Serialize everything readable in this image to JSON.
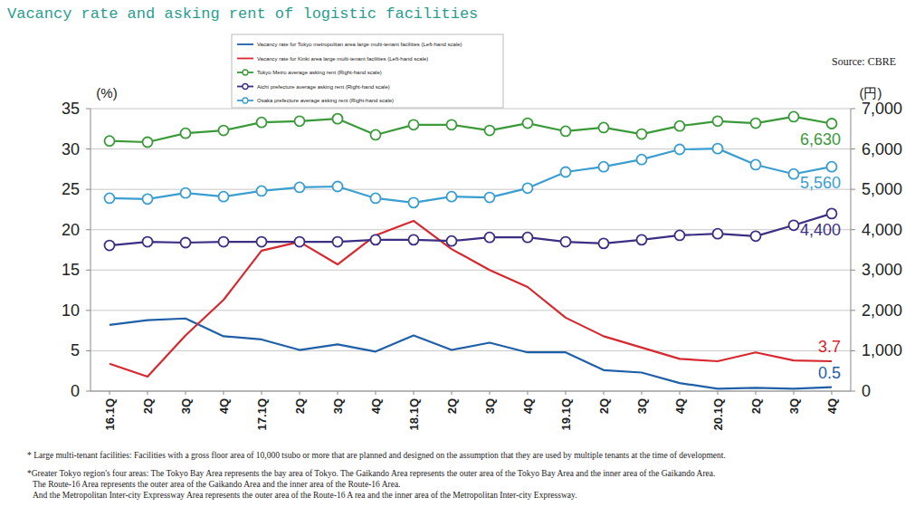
{
  "chart_data": {
    "type": "line",
    "title": "Vacancy rate and asking rent of logistic facilities",
    "source": "Source: CBRE",
    "y_label": "(%)",
    "y2_label": "(円)",
    "categories": [
      "16.1Q",
      "2Q",
      "3Q",
      "4Q",
      "17.1Q",
      "2Q",
      "3Q",
      "4Q",
      "18.1Q",
      "2Q",
      "3Q",
      "4Q",
      "19.1Q",
      "2Q",
      "3Q",
      "4Q",
      "20.1Q",
      "2Q",
      "3Q",
      "4Q"
    ],
    "ylim": [
      0,
      35
    ],
    "yticks": [
      0,
      5,
      10,
      15,
      20,
      25,
      30,
      35
    ],
    "y2lim": [
      0,
      7000
    ],
    "y2ticks": [
      0,
      {
        "value": 1000,
        "label": "1,000"
      },
      {
        "value": 2000,
        "label": "2,000"
      },
      {
        "value": 3000,
        "label": "3,000"
      },
      {
        "value": 4000,
        "label": "4,000"
      },
      {
        "value": 5000,
        "label": "5,000"
      },
      {
        "value": 6000,
        "label": "6,000"
      },
      {
        "value": 7000,
        "label": "7,000"
      }
    ],
    "grid": true,
    "legend": "top",
    "series": [
      {
        "name": "Vacancy rate for Tokyo metropolitan area large multi-tenant facilities (Left-hand scale)",
        "color": "#1f5fa8",
        "axis": "y",
        "marker": "none",
        "values": [
          8.2,
          8.8,
          9.0,
          6.8,
          6.4,
          5.1,
          5.8,
          4.9,
          6.9,
          5.1,
          6.0,
          4.8,
          4.8,
          2.6,
          2.3,
          1.0,
          0.3,
          0.4,
          0.3,
          0.5
        ],
        "value_labels": [
          null,
          null,
          null,
          null,
          null,
          null,
          null,
          null,
          null,
          null,
          null,
          null,
          null,
          null,
          null,
          null,
          null,
          null,
          null,
          "0.5"
        ]
      },
      {
        "name": "Vacancy rate for Kinki area large multi-tenant facilities (Left-hand scale)",
        "color": "#d7282f",
        "axis": "y",
        "marker": "none",
        "values": [
          3.4,
          1.8,
          6.9,
          11.3,
          17.4,
          18.5,
          15.7,
          19.3,
          21.1,
          17.6,
          15.0,
          12.9,
          9.1,
          6.8,
          5.4,
          4.0,
          3.7,
          4.8,
          3.8,
          3.7
        ],
        "value_labels": [
          null,
          null,
          null,
          null,
          null,
          null,
          null,
          null,
          null,
          null,
          null,
          null,
          null,
          null,
          null,
          null,
          null,
          null,
          null,
          "3.7"
        ]
      },
      {
        "name": "Tokyo Metro average asking rent (Right-hand scale)",
        "color": "#3a9a3a",
        "axis": "y2",
        "marker": "circle",
        "values": [
          6200,
          6170,
          6390,
          6460,
          6660,
          6690,
          6750,
          6350,
          6600,
          6600,
          6460,
          6640,
          6440,
          6530,
          6370,
          6570,
          6690,
          6640,
          6800,
          6630
        ],
        "value_labels": [
          null,
          null,
          null,
          null,
          null,
          null,
          null,
          null,
          null,
          null,
          null,
          null,
          null,
          null,
          null,
          null,
          null,
          null,
          null,
          "6,630"
        ]
      },
      {
        "name": "Aichi prefecture average asking rent (Right-hand scale)",
        "color": "#3b2f84",
        "axis": "y2",
        "marker": "circle",
        "values": [
          3610,
          3700,
          3680,
          3700,
          3700,
          3700,
          3700,
          3750,
          3750,
          3720,
          3810,
          3810,
          3700,
          3660,
          3750,
          3860,
          3900,
          3840,
          4110,
          4400
        ],
        "value_labels": [
          null,
          null,
          null,
          null,
          null,
          null,
          null,
          null,
          null,
          null,
          null,
          null,
          null,
          null,
          null,
          null,
          null,
          null,
          null,
          "4,400"
        ]
      },
      {
        "name": "Osaka prefecture average asking rent (Right-hand scale)",
        "color": "#3a9ed0",
        "axis": "y2",
        "marker": "circle",
        "values": [
          4780,
          4760,
          4910,
          4820,
          4960,
          5050,
          5070,
          4780,
          4670,
          4820,
          4800,
          5030,
          5430,
          5560,
          5740,
          5990,
          6010,
          5610,
          5380,
          5560
        ],
        "value_labels": [
          null,
          null,
          null,
          null,
          null,
          null,
          null,
          null,
          null,
          null,
          null,
          null,
          null,
          null,
          null,
          null,
          null,
          null,
          null,
          "5,560"
        ]
      }
    ],
    "notes": [
      "* Large multi-tenant facilities: Facilities with a gross floor area of 10,000 tsubo or more that are planned and designed on the assumption that they are used by multiple tenants at the time of development.",
      "*Greater Tokyo region's four areas: The Tokyo Bay Area represents the bay area of Tokyo. The Gaikando Area represents the outer area of the Tokyo Bay Area and the inner area of the Gaikando Area.",
      "The Route-16 Area represents the outer area of the Gaikando Area and the inner area of the Route-16 Area.",
      "And the Metropolitan Inter-city Expressway Area represents the outer area of the Route-16 A rea and the inner area of the Metropolitan Inter-city Expressway."
    ]
  }
}
